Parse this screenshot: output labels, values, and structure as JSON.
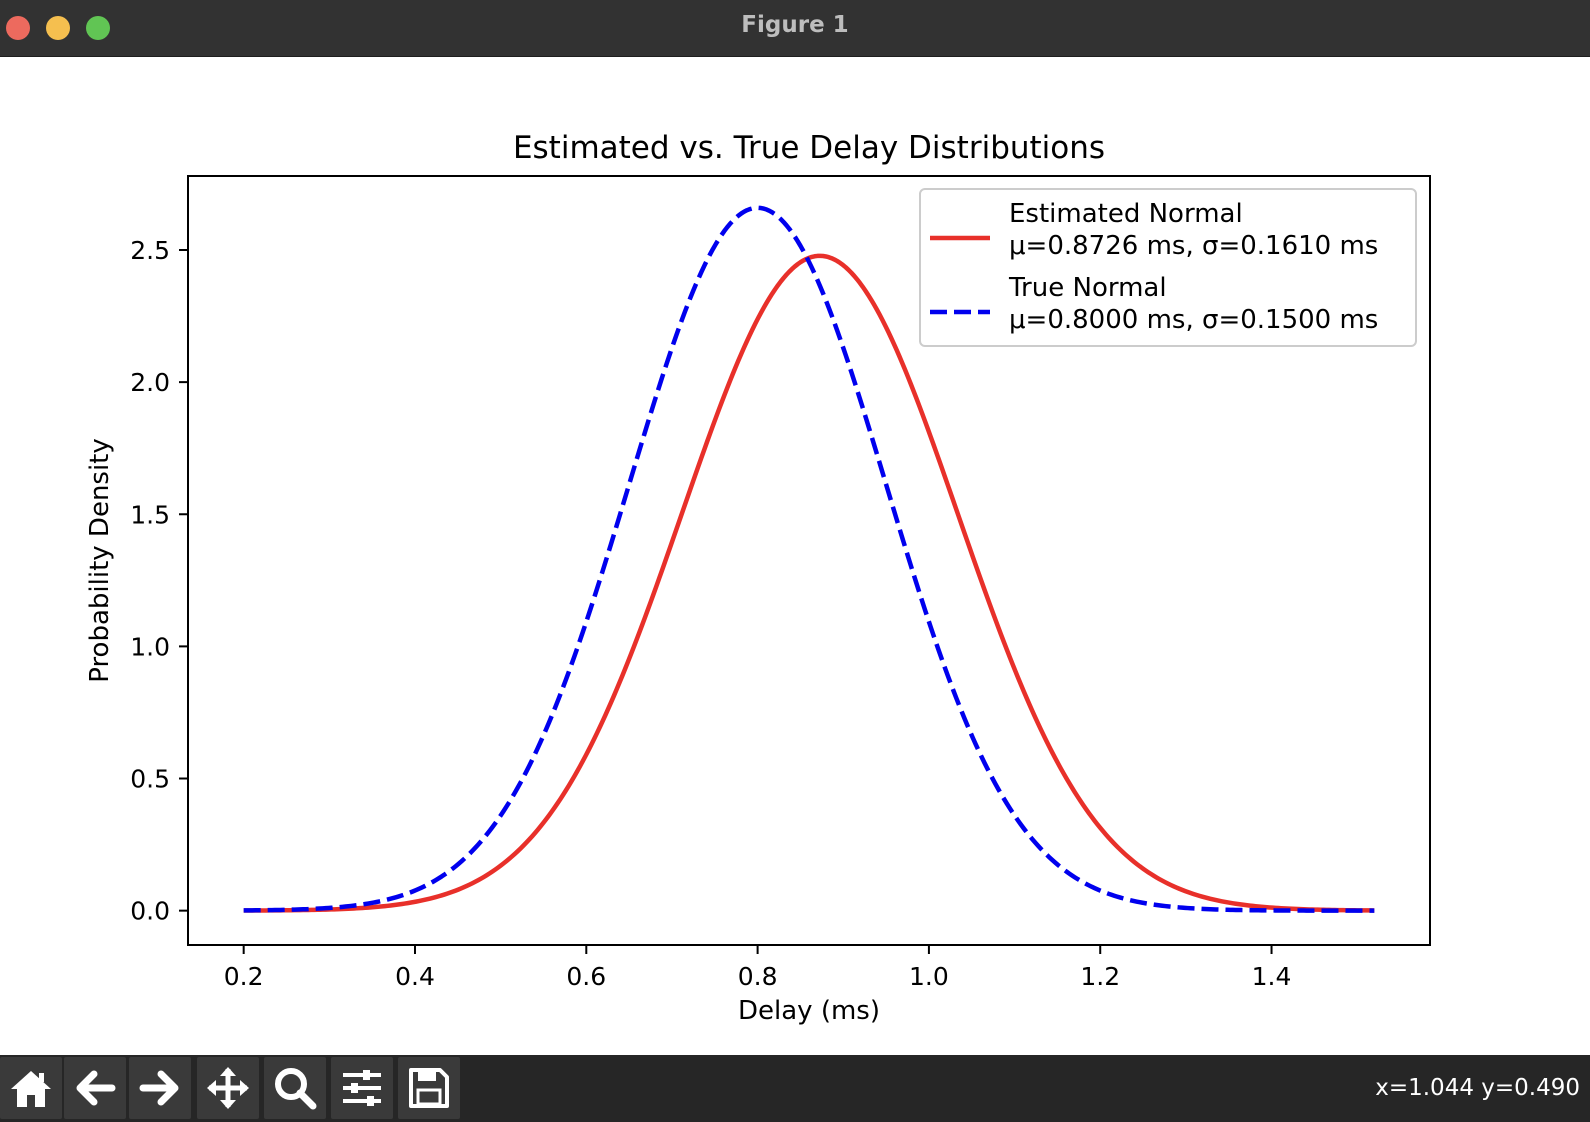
{
  "window": {
    "title": "Figure 1"
  },
  "toolbar": {
    "buttons": [
      {
        "name": "home-button",
        "icon": "home-icon"
      },
      {
        "name": "back-button",
        "icon": "arrow-left-icon"
      },
      {
        "name": "forward-button",
        "icon": "arrow-right-icon"
      },
      {
        "name": "pan-button",
        "icon": "move-icon"
      },
      {
        "name": "zoom-button",
        "icon": "magnifier-icon"
      },
      {
        "name": "configure-subplots-button",
        "icon": "sliders-icon"
      },
      {
        "name": "save-button",
        "icon": "floppy-disk-icon"
      }
    ],
    "coords": "x=1.044 y=0.490"
  },
  "chart_data": {
    "type": "line",
    "title": "Estimated vs. True Delay Distributions",
    "xlabel": "Delay (ms)",
    "ylabel": "Probability Density",
    "xlim": [
      0.135,
      1.585
    ],
    "ylim": [
      -0.13,
      2.78
    ],
    "xticks": [
      0.2,
      0.4,
      0.6,
      0.8,
      1.0,
      1.2,
      1.4
    ],
    "xtick_labels": [
      "0.2",
      "0.4",
      "0.6",
      "0.8",
      "1.0",
      "1.2",
      "1.4"
    ],
    "yticks": [
      0.0,
      0.5,
      1.0,
      1.5,
      2.0,
      2.5
    ],
    "ytick_labels": [
      "0.0",
      "0.5",
      "1.0",
      "1.5",
      "2.0",
      "2.5"
    ],
    "grid": false,
    "legend_position": "top-right",
    "x_range": [
      0.2,
      1.52
    ],
    "series": [
      {
        "name": "Estimated Normal",
        "label_lines": [
          "Estimated Normal",
          "μ=0.8726 ms, σ=0.1610 ms"
        ],
        "distribution": "normal",
        "mu": 0.8726,
        "sigma": 0.161,
        "color": "#e8302a",
        "style": "solid"
      },
      {
        "name": "True Normal",
        "label_lines": [
          "True Normal",
          "μ=0.8000 ms, σ=0.1500 ms"
        ],
        "distribution": "normal",
        "mu": 0.8,
        "sigma": 0.15,
        "color": "#0000ee",
        "style": "dashed"
      }
    ]
  }
}
